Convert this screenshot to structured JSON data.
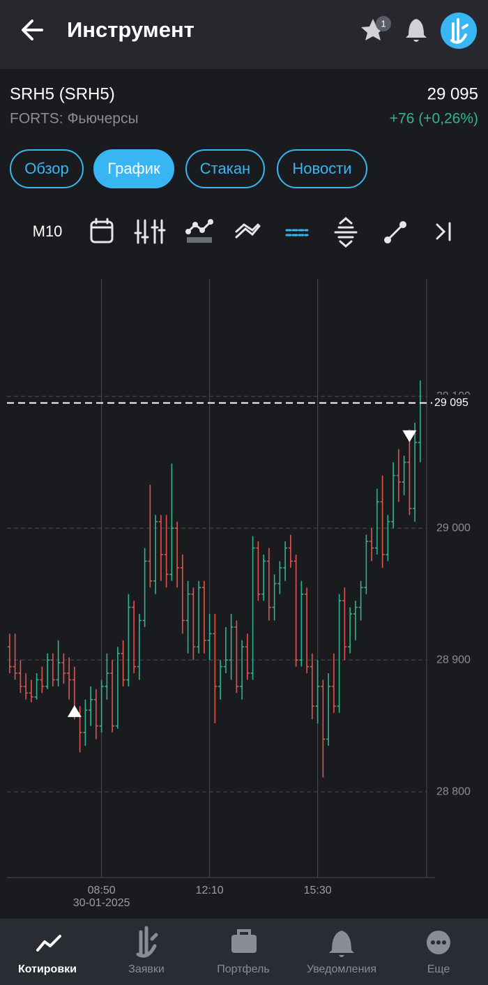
{
  "header": {
    "title": "Инструмент",
    "favorites_badge": "1"
  },
  "instrument": {
    "name": "SRH5 (SRH5)",
    "market": "FORTS: Фьючерсы",
    "price": "29 095",
    "change": "+76 (+0,26%)"
  },
  "tabs": [
    {
      "label": "Обзор"
    },
    {
      "label": "График",
      "active": true
    },
    {
      "label": "Стакан"
    },
    {
      "label": "Новости"
    }
  ],
  "toolbar": {
    "timeframe": "M10"
  },
  "chart_data": {
    "type": "ohlc",
    "categories": [
      null,
      null,
      null,
      null,
      null,
      null,
      null,
      null,
      null,
      null,
      null,
      null,
      null,
      null,
      null,
      null,
      null,
      "08:50",
      null,
      null,
      null,
      null,
      null,
      null,
      null,
      null,
      null,
      null,
      null,
      null,
      null,
      null,
      null,
      null,
      null,
      null,
      null,
      "12:10",
      null,
      null,
      null,
      null,
      null,
      null,
      null,
      null,
      null,
      null,
      null,
      null,
      null,
      null,
      null,
      null,
      null,
      null,
      null,
      "15:30",
      null,
      null,
      null,
      null,
      null,
      null,
      null,
      null,
      null,
      null,
      null,
      null,
      null,
      null,
      null,
      null,
      null,
      null,
      null
    ],
    "date": "30-01-2025",
    "open": [
      28910,
      28895,
      28890,
      28880,
      28875,
      28872,
      28885,
      28880,
      28900,
      28885,
      28898,
      28890,
      28885,
      28860,
      28845,
      28862,
      28870,
      28850,
      28880,
      28890,
      28850,
      28905,
      28885,
      28940,
      28895,
      28930,
      28975,
      28960,
      29005,
      28980,
      28965,
      29000,
      28970,
      28930,
      28950,
      28910,
      28955,
      28915,
      28920,
      28880,
      28895,
      28900,
      28925,
      28880,
      28910,
      28890,
      28985,
      28950,
      28975,
      28940,
      28958,
      28970,
      28985,
      28975,
      28900,
      28950,
      28895,
      28865,
      28880,
      28840,
      28880,
      28865,
      28945,
      28910,
      28935,
      28940,
      28955,
      28990,
      28985,
      29020,
      28980,
      29005,
      29040,
      29035,
      29050,
      29015,
      29065
    ],
    "high": [
      28920,
      28920,
      28900,
      28890,
      28885,
      28890,
      28895,
      28905,
      28905,
      28915,
      28905,
      28902,
      28895,
      28865,
      28870,
      28880,
      28878,
      28885,
      28905,
      28900,
      28910,
      28915,
      28950,
      28945,
      28935,
      28985,
      29033,
      29010,
      29010,
      29010,
      29049,
      29005,
      28980,
      28960,
      28955,
      28960,
      28960,
      28935,
      28935,
      28900,
      28925,
      28935,
      28930,
      28915,
      28920,
      28994,
      28990,
      28980,
      28985,
      28965,
      28975,
      28990,
      28995,
      28980,
      28960,
      28955,
      28905,
      28900,
      28885,
      28890,
      28905,
      28950,
      28955,
      28940,
      28945,
      28960,
      28995,
      29000,
      29030,
      29040,
      29010,
      29050,
      29060,
      29055,
      29075,
      29080,
      29112
    ],
    "low": [
      28890,
      28885,
      28875,
      28870,
      28868,
      28870,
      28875,
      28878,
      28880,
      28880,
      28882,
      28870,
      28855,
      28830,
      28835,
      28850,
      28840,
      28845,
      28870,
      28845,
      28848,
      28880,
      28880,
      28890,
      28885,
      28925,
      28955,
      28950,
      28960,
      28955,
      28960,
      28955,
      28920,
      28905,
      28900,
      28905,
      28905,
      28900,
      28852,
      28870,
      28890,
      28885,
      28875,
      28870,
      28885,
      28885,
      28945,
      28945,
      28930,
      28930,
      28950,
      28960,
      28970,
      28895,
      28895,
      28890,
      28855,
      28852,
      28811,
      28835,
      28860,
      28860,
      28900,
      28905,
      28915,
      28930,
      28950,
      28975,
      28980,
      28970,
      28975,
      29000,
      29020,
      29025,
      29010,
      29005,
      29050
    ],
    "close": [
      28895,
      28890,
      28880,
      28875,
      28872,
      28885,
      28880,
      28900,
      28885,
      28898,
      28890,
      28885,
      28860,
      28845,
      28862,
      28870,
      28850,
      28880,
      28890,
      28850,
      28905,
      28885,
      28940,
      28895,
      28930,
      28975,
      28960,
      29005,
      28980,
      28965,
      29000,
      28970,
      28930,
      28950,
      28910,
      28955,
      28915,
      28920,
      28880,
      28895,
      28900,
      28925,
      28880,
      28910,
      28890,
      28985,
      28950,
      28975,
      28940,
      28958,
      28970,
      28985,
      28975,
      28900,
      28950,
      28895,
      28865,
      28880,
      28840,
      28880,
      28865,
      28945,
      28910,
      28935,
      28940,
      28955,
      28990,
      28985,
      29020,
      28980,
      29005,
      29040,
      29035,
      29050,
      29015,
      29065,
      29095
    ],
    "up_color": "#2fb58f",
    "down_color": "#e0554f",
    "markers": [
      {
        "at": 12,
        "value": 28861,
        "direction": "up"
      },
      {
        "at": 74,
        "value": 29070,
        "direction": "down"
      }
    ],
    "last_price": {
      "value": 29095,
      "label": "29 095"
    },
    "ylim": [
      28735,
      29189
    ],
    "yticks": [
      {
        "value": 28800,
        "label": "28 800"
      },
      {
        "value": 28900,
        "label": "28 900"
      },
      {
        "value": 29000,
        "label": "29 000"
      },
      {
        "value": 29100,
        "label": "29 100"
      }
    ],
    "grid": true
  },
  "nav": [
    {
      "label": "Котировки",
      "active": true
    },
    {
      "label": "Заявки"
    },
    {
      "label": "Портфель"
    },
    {
      "label": "Уведомления"
    },
    {
      "label": "Еще"
    }
  ]
}
